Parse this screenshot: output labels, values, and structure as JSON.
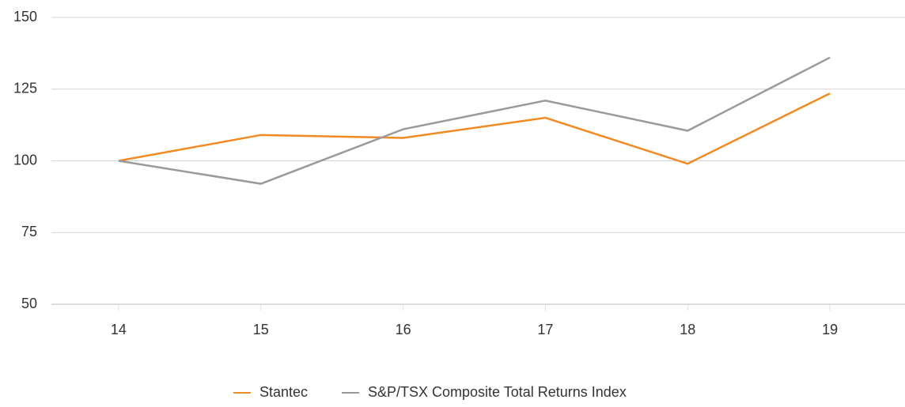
{
  "chart_data": {
    "type": "line",
    "categories": [
      "14",
      "15",
      "16",
      "17",
      "18",
      "19"
    ],
    "series": [
      {
        "name": "Stantec",
        "color": "#f28a24",
        "values": [
          100,
          109,
          108,
          115,
          99,
          123.5
        ]
      },
      {
        "name": "S&P/TSX Composite Total Returns Index",
        "color": "#9a9a9a",
        "values": [
          100,
          92,
          111,
          121,
          110.5,
          136
        ]
      }
    ],
    "ylim": [
      50,
      150
    ],
    "yticks": [
      50,
      75,
      100,
      125,
      150
    ],
    "grid": true,
    "legend": "bottom"
  }
}
